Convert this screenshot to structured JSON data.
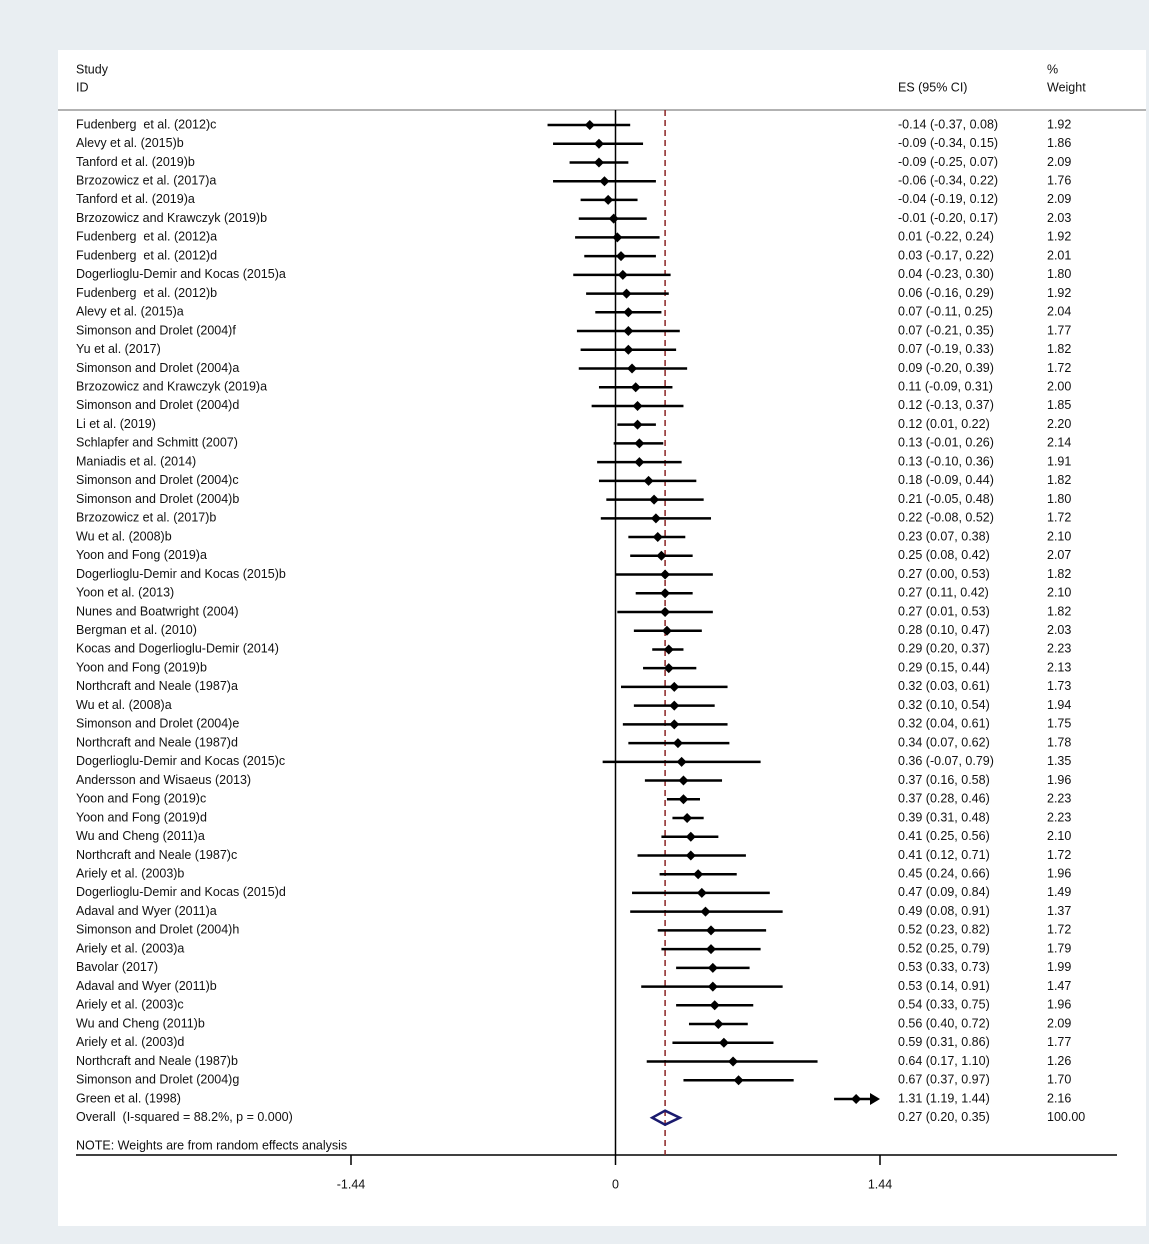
{
  "chart_data": {
    "type": "forest",
    "header": {
      "study_line1": "Study",
      "study_line2": "ID",
      "es": "ES (95% CI)",
      "weight_line1": "%",
      "weight_line2": "Weight"
    },
    "xlim": [
      -1.44,
      1.44
    ],
    "xticks": [
      -1.44,
      0,
      1.44
    ],
    "studies": [
      {
        "label": "Fudenberg  et al. (2012)c",
        "es": -0.14,
        "lo": -0.37,
        "hi": 0.08,
        "ci_label": "-0.14 (-0.37, 0.08)",
        "weight": "1.92"
      },
      {
        "label": "Alevy et al. (2015)b",
        "es": -0.09,
        "lo": -0.34,
        "hi": 0.15,
        "ci_label": "-0.09 (-0.34, 0.15)",
        "weight": "1.86"
      },
      {
        "label": "Tanford et al. (2019)b",
        "es": -0.09,
        "lo": -0.25,
        "hi": 0.07,
        "ci_label": "-0.09 (-0.25, 0.07)",
        "weight": "2.09"
      },
      {
        "label": "Brzozowicz et al. (2017)a",
        "es": -0.06,
        "lo": -0.34,
        "hi": 0.22,
        "ci_label": "-0.06 (-0.34, 0.22)",
        "weight": "1.76"
      },
      {
        "label": "Tanford et al. (2019)a",
        "es": -0.04,
        "lo": -0.19,
        "hi": 0.12,
        "ci_label": "-0.04 (-0.19, 0.12)",
        "weight": "2.09"
      },
      {
        "label": "Brzozowicz and Krawczyk (2019)b",
        "es": -0.01,
        "lo": -0.2,
        "hi": 0.17,
        "ci_label": "-0.01 (-0.20, 0.17)",
        "weight": "2.03"
      },
      {
        "label": "Fudenberg  et al. (2012)a",
        "es": 0.01,
        "lo": -0.22,
        "hi": 0.24,
        "ci_label": "0.01 (-0.22, 0.24)",
        "weight": "1.92"
      },
      {
        "label": "Fudenberg  et al. (2012)d",
        "es": 0.03,
        "lo": -0.17,
        "hi": 0.22,
        "ci_label": "0.03 (-0.17, 0.22)",
        "weight": "2.01"
      },
      {
        "label": "Dogerlioglu-Demir and Kocas (2015)a",
        "es": 0.04,
        "lo": -0.23,
        "hi": 0.3,
        "ci_label": "0.04 (-0.23, 0.30)",
        "weight": "1.80"
      },
      {
        "label": "Fudenberg  et al. (2012)b",
        "es": 0.06,
        "lo": -0.16,
        "hi": 0.29,
        "ci_label": "0.06 (-0.16, 0.29)",
        "weight": "1.92"
      },
      {
        "label": "Alevy et al. (2015)a",
        "es": 0.07,
        "lo": -0.11,
        "hi": 0.25,
        "ci_label": "0.07 (-0.11, 0.25)",
        "weight": "2.04"
      },
      {
        "label": "Simonson and Drolet (2004)f",
        "es": 0.07,
        "lo": -0.21,
        "hi": 0.35,
        "ci_label": "0.07 (-0.21, 0.35)",
        "weight": "1.77"
      },
      {
        "label": "Yu et al. (2017)",
        "es": 0.07,
        "lo": -0.19,
        "hi": 0.33,
        "ci_label": "0.07 (-0.19, 0.33)",
        "weight": "1.82"
      },
      {
        "label": "Simonson and Drolet (2004)a",
        "es": 0.09,
        "lo": -0.2,
        "hi": 0.39,
        "ci_label": "0.09 (-0.20, 0.39)",
        "weight": "1.72"
      },
      {
        "label": "Brzozowicz and Krawczyk (2019)a",
        "es": 0.11,
        "lo": -0.09,
        "hi": 0.31,
        "ci_label": "0.11 (-0.09, 0.31)",
        "weight": "2.00"
      },
      {
        "label": "Simonson and Drolet (2004)d",
        "es": 0.12,
        "lo": -0.13,
        "hi": 0.37,
        "ci_label": "0.12 (-0.13, 0.37)",
        "weight": "1.85"
      },
      {
        "label": "Li et al. (2019)",
        "es": 0.12,
        "lo": 0.01,
        "hi": 0.22,
        "ci_label": "0.12 (0.01, 0.22)",
        "weight": "2.20"
      },
      {
        "label": "Schlapfer and Schmitt (2007)",
        "es": 0.13,
        "lo": -0.01,
        "hi": 0.26,
        "ci_label": "0.13 (-0.01, 0.26)",
        "weight": "2.14"
      },
      {
        "label": "Maniadis et al. (2014)",
        "es": 0.13,
        "lo": -0.1,
        "hi": 0.36,
        "ci_label": "0.13 (-0.10, 0.36)",
        "weight": "1.91"
      },
      {
        "label": "Simonson and Drolet (2004)c",
        "es": 0.18,
        "lo": -0.09,
        "hi": 0.44,
        "ci_label": "0.18 (-0.09, 0.44)",
        "weight": "1.82"
      },
      {
        "label": "Simonson and Drolet (2004)b",
        "es": 0.21,
        "lo": -0.05,
        "hi": 0.48,
        "ci_label": "0.21 (-0.05, 0.48)",
        "weight": "1.80"
      },
      {
        "label": "Brzozowicz et al. (2017)b",
        "es": 0.22,
        "lo": -0.08,
        "hi": 0.52,
        "ci_label": "0.22 (-0.08, 0.52)",
        "weight": "1.72"
      },
      {
        "label": "Wu et al. (2008)b",
        "es": 0.23,
        "lo": 0.07,
        "hi": 0.38,
        "ci_label": "0.23 (0.07, 0.38)",
        "weight": "2.10"
      },
      {
        "label": "Yoon and Fong (2019)a",
        "es": 0.25,
        "lo": 0.08,
        "hi": 0.42,
        "ci_label": "0.25 (0.08, 0.42)",
        "weight": "2.07"
      },
      {
        "label": "Dogerlioglu-Demir and Kocas (2015)b",
        "es": 0.27,
        "lo": 0.0,
        "hi": 0.53,
        "ci_label": "0.27 (0.00, 0.53)",
        "weight": "1.82"
      },
      {
        "label": "Yoon et al. (2013)",
        "es": 0.27,
        "lo": 0.11,
        "hi": 0.42,
        "ci_label": "0.27 (0.11, 0.42)",
        "weight": "2.10"
      },
      {
        "label": "Nunes and Boatwright (2004)",
        "es": 0.27,
        "lo": 0.01,
        "hi": 0.53,
        "ci_label": "0.27 (0.01, 0.53)",
        "weight": "1.82"
      },
      {
        "label": "Bergman et al. (2010)",
        "es": 0.28,
        "lo": 0.1,
        "hi": 0.47,
        "ci_label": "0.28 (0.10, 0.47)",
        "weight": "2.03"
      },
      {
        "label": "Kocas and Dogerlioglu-Demir (2014)",
        "es": 0.29,
        "lo": 0.2,
        "hi": 0.37,
        "ci_label": "0.29 (0.20, 0.37)",
        "weight": "2.23"
      },
      {
        "label": "Yoon and Fong (2019)b",
        "es": 0.29,
        "lo": 0.15,
        "hi": 0.44,
        "ci_label": "0.29 (0.15, 0.44)",
        "weight": "2.13"
      },
      {
        "label": "Northcraft and Neale (1987)a",
        "es": 0.32,
        "lo": 0.03,
        "hi": 0.61,
        "ci_label": "0.32 (0.03, 0.61)",
        "weight": "1.73"
      },
      {
        "label": "Wu et al. (2008)a",
        "es": 0.32,
        "lo": 0.1,
        "hi": 0.54,
        "ci_label": "0.32 (0.10, 0.54)",
        "weight": "1.94"
      },
      {
        "label": "Simonson and Drolet (2004)e",
        "es": 0.32,
        "lo": 0.04,
        "hi": 0.61,
        "ci_label": "0.32 (0.04, 0.61)",
        "weight": "1.75"
      },
      {
        "label": "Northcraft and Neale (1987)d",
        "es": 0.34,
        "lo": 0.07,
        "hi": 0.62,
        "ci_label": "0.34 (0.07, 0.62)",
        "weight": "1.78"
      },
      {
        "label": "Dogerlioglu-Demir and Kocas (2015)c",
        "es": 0.36,
        "lo": -0.07,
        "hi": 0.79,
        "ci_label": "0.36 (-0.07, 0.79)",
        "weight": "1.35"
      },
      {
        "label": "Andersson and Wisaeus (2013)",
        "es": 0.37,
        "lo": 0.16,
        "hi": 0.58,
        "ci_label": "0.37 (0.16, 0.58)",
        "weight": "1.96"
      },
      {
        "label": "Yoon and Fong (2019)c",
        "es": 0.37,
        "lo": 0.28,
        "hi": 0.46,
        "ci_label": "0.37 (0.28, 0.46)",
        "weight": "2.23"
      },
      {
        "label": "Yoon and Fong (2019)d",
        "es": 0.39,
        "lo": 0.31,
        "hi": 0.48,
        "ci_label": "0.39 (0.31, 0.48)",
        "weight": "2.23"
      },
      {
        "label": "Wu and Cheng (2011)a",
        "es": 0.41,
        "lo": 0.25,
        "hi": 0.56,
        "ci_label": "0.41 (0.25, 0.56)",
        "weight": "2.10"
      },
      {
        "label": "Northcraft and Neale (1987)c",
        "es": 0.41,
        "lo": 0.12,
        "hi": 0.71,
        "ci_label": "0.41 (0.12, 0.71)",
        "weight": "1.72"
      },
      {
        "label": "Ariely et al. (2003)b",
        "es": 0.45,
        "lo": 0.24,
        "hi": 0.66,
        "ci_label": "0.45 (0.24, 0.66)",
        "weight": "1.96"
      },
      {
        "label": "Dogerlioglu-Demir and Kocas (2015)d",
        "es": 0.47,
        "lo": 0.09,
        "hi": 0.84,
        "ci_label": "0.47 (0.09, 0.84)",
        "weight": "1.49"
      },
      {
        "label": "Adaval and Wyer (2011)a",
        "es": 0.49,
        "lo": 0.08,
        "hi": 0.91,
        "ci_label": "0.49 (0.08, 0.91)",
        "weight": "1.37"
      },
      {
        "label": "Simonson and Drolet (2004)h",
        "es": 0.52,
        "lo": 0.23,
        "hi": 0.82,
        "ci_label": "0.52 (0.23, 0.82)",
        "weight": "1.72"
      },
      {
        "label": "Ariely et al. (2003)a",
        "es": 0.52,
        "lo": 0.25,
        "hi": 0.79,
        "ci_label": "0.52 (0.25, 0.79)",
        "weight": "1.79"
      },
      {
        "label": "Bavolar (2017)",
        "es": 0.53,
        "lo": 0.33,
        "hi": 0.73,
        "ci_label": "0.53 (0.33, 0.73)",
        "weight": "1.99"
      },
      {
        "label": "Adaval and Wyer (2011)b",
        "es": 0.53,
        "lo": 0.14,
        "hi": 0.91,
        "ci_label": "0.53 (0.14, 0.91)",
        "weight": "1.47"
      },
      {
        "label": "Ariely et al. (2003)c",
        "es": 0.54,
        "lo": 0.33,
        "hi": 0.75,
        "ci_label": "0.54 (0.33, 0.75)",
        "weight": "1.96"
      },
      {
        "label": "Wu and Cheng (2011)b",
        "es": 0.56,
        "lo": 0.4,
        "hi": 0.72,
        "ci_label": "0.56 (0.40, 0.72)",
        "weight": "2.09"
      },
      {
        "label": "Ariely et al. (2003)d",
        "es": 0.59,
        "lo": 0.31,
        "hi": 0.86,
        "ci_label": "0.59 (0.31, 0.86)",
        "weight": "1.77"
      },
      {
        "label": "Northcraft and Neale (1987)b",
        "es": 0.64,
        "lo": 0.17,
        "hi": 1.1,
        "ci_label": "0.64 (0.17, 1.10)",
        "weight": "1.26"
      },
      {
        "label": "Simonson and Drolet (2004)g",
        "es": 0.67,
        "lo": 0.37,
        "hi": 0.97,
        "ci_label": "0.67 (0.37, 0.97)",
        "weight": "1.70"
      },
      {
        "label": "Green et al. (1998)",
        "es": 1.31,
        "lo": 1.19,
        "hi": 1.44,
        "ci_label": "1.31 (1.19, 1.44)",
        "weight": "2.16"
      }
    ],
    "overall": {
      "label": "Overall  (I-squared = 88.2%, p = 0.000)",
      "es": 0.27,
      "lo": 0.2,
      "hi": 0.35,
      "ci_label": "0.27 (0.20, 0.35)",
      "weight": "100.00"
    },
    "note": "NOTE: Weights are from random effects analysis",
    "colors": {
      "marker": "#000000",
      "overall": "#1a1a6e",
      "reference": "#8b2323"
    }
  }
}
